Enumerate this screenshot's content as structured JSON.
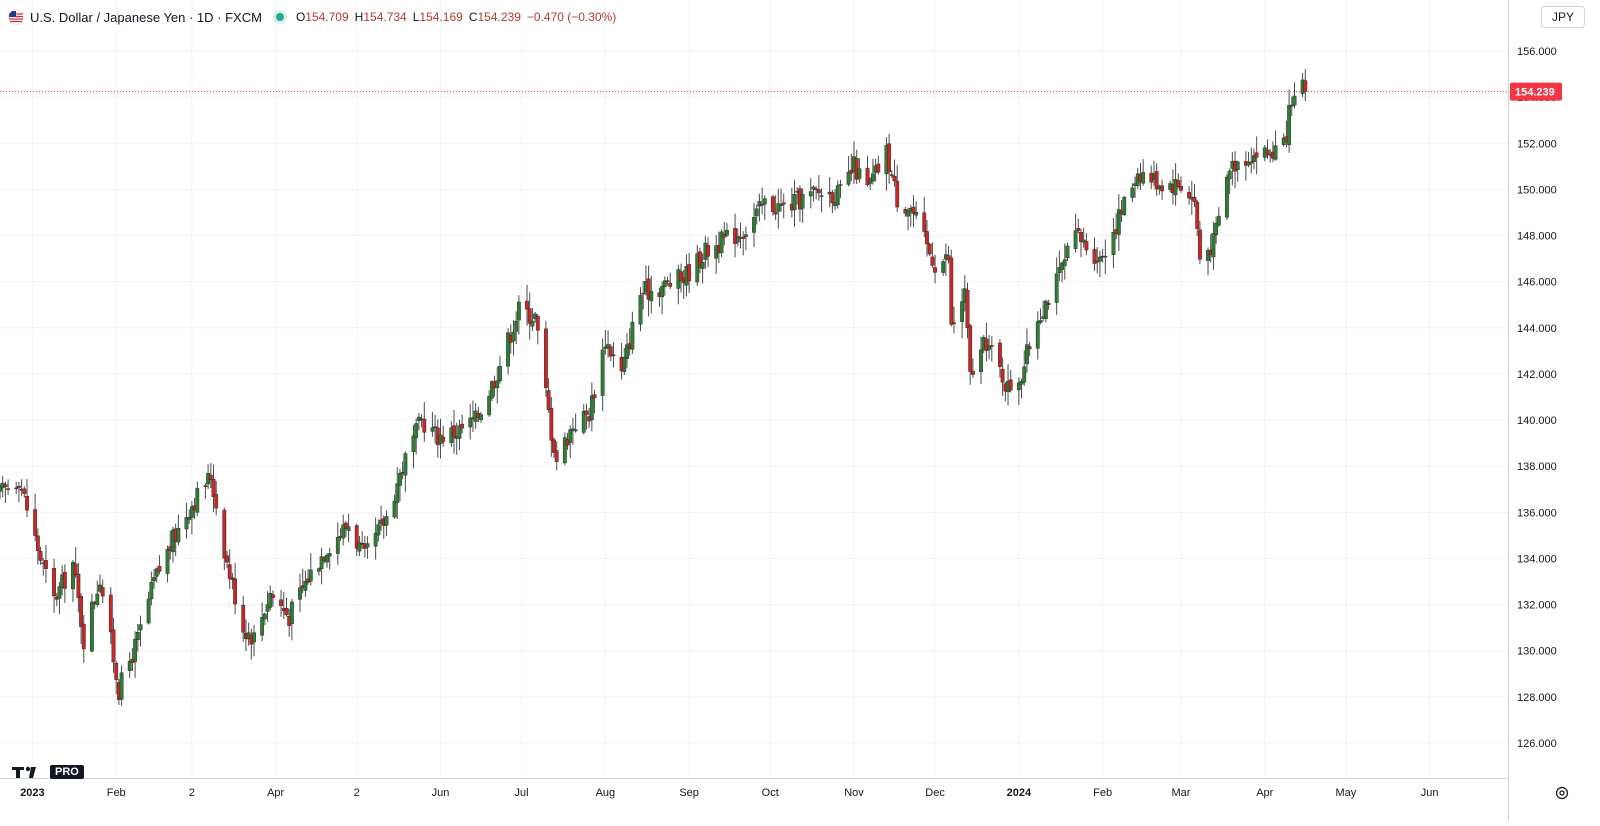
{
  "header": {
    "title": "U.S. Dollar / Japanese Yen · 1D · FXCM",
    "ohlc": [
      {
        "label": "O",
        "value": "154.709"
      },
      {
        "label": "H",
        "value": "154.734"
      },
      {
        "label": "L",
        "value": "154.169"
      },
      {
        "label": "C",
        "value": "154.239"
      },
      {
        "label": "",
        "value": "−0.470 (−0.30%)"
      }
    ],
    "flag_icon": "us-flag-icon",
    "status_color": "#22ab94"
  },
  "price_axis": {
    "currency": "JPY",
    "last_price_label": "154.239",
    "last_price_color": "#f23645"
  },
  "logo": {
    "text": "PRO"
  },
  "colors": {
    "up": "#2e7d32",
    "down": "#c62828",
    "wick": "#4a4a4a",
    "grid": "#f0f3fa"
  },
  "chart_data": {
    "type": "candlestick",
    "title": "U.S. Dollar / Japanese Yen · 1D · FXCM",
    "ylim": [
      124.5,
      157.5
    ],
    "y_ticks": [
      126,
      128,
      130,
      132,
      134,
      136,
      138,
      140,
      142,
      144,
      146,
      148,
      150,
      152,
      154,
      156
    ],
    "y_tick_labels": [
      "126.000",
      "128.000",
      "130.000",
      "132.000",
      "134.000",
      "136.000",
      "138.000",
      "140.000",
      "142.000",
      "144.000",
      "146.000",
      "148.000",
      "150.000",
      "152.000",
      "154.000",
      "156.000"
    ],
    "x_labels": [
      "2023",
      "Feb",
      "2",
      "Apr",
      "2",
      "Jun",
      "Jul",
      "Aug",
      "Sep",
      "Oct",
      "Nov",
      "Dec",
      "2024",
      "Feb",
      "Mar",
      "Apr",
      "May",
      "Jun"
    ],
    "x_range": [
      "2022-12-20",
      "2024-06-30"
    ],
    "x_label_dates": [
      "2023-01-01",
      "2023-02-01",
      "2023-03-01",
      "2023-04-01",
      "2023-05-01",
      "2023-06-01",
      "2023-07-01",
      "2023-08-01",
      "2023-09-01",
      "2023-10-01",
      "2023-11-01",
      "2023-12-01",
      "2024-01-01",
      "2024-02-01",
      "2024-03-01",
      "2024-04-01",
      "2024-05-01",
      "2024-06-01"
    ],
    "close_anchors": [
      [
        "2022-12-20",
        136.8
      ],
      [
        "2022-12-27",
        137.5
      ],
      [
        "2023-01-04",
        134.0
      ],
      [
        "2023-01-09",
        132.2
      ],
      [
        "2023-01-16",
        133.8
      ],
      [
        "2023-01-20",
        130.5
      ],
      [
        "2023-01-26",
        133.2
      ],
      [
        "2023-02-02",
        128.3
      ],
      [
        "2023-02-09",
        130.5
      ],
      [
        "2023-02-15",
        133.0
      ],
      [
        "2023-02-22",
        134.8
      ],
      [
        "2023-02-28",
        136.2
      ],
      [
        "2023-03-08",
        137.6
      ],
      [
        "2023-03-14",
        133.8
      ],
      [
        "2023-03-20",
        131.0
      ],
      [
        "2023-03-24",
        130.6
      ],
      [
        "2023-03-30",
        132.5
      ],
      [
        "2023-04-06",
        131.5
      ],
      [
        "2023-04-13",
        133.2
      ],
      [
        "2023-04-20",
        134.5
      ],
      [
        "2023-04-28",
        135.5
      ],
      [
        "2023-05-04",
        134.0
      ],
      [
        "2023-05-12",
        135.8
      ],
      [
        "2023-05-18",
        138.0
      ],
      [
        "2023-05-25",
        140.0
      ],
      [
        "2023-05-31",
        139.3
      ],
      [
        "2023-06-07",
        139.5
      ],
      [
        "2023-06-14",
        140.0
      ],
      [
        "2023-06-21",
        141.8
      ],
      [
        "2023-06-30",
        144.8
      ],
      [
        "2023-07-06",
        144.5
      ],
      [
        "2023-07-12",
        139.5
      ],
      [
        "2023-07-14",
        138.3
      ],
      [
        "2023-07-20",
        139.8
      ],
      [
        "2023-07-26",
        140.3
      ],
      [
        "2023-08-01",
        143.5
      ],
      [
        "2023-08-07",
        142.0
      ],
      [
        "2023-08-14",
        145.5
      ],
      [
        "2023-08-22",
        145.8
      ],
      [
        "2023-08-30",
        146.2
      ],
      [
        "2023-09-07",
        147.3
      ],
      [
        "2023-09-14",
        147.8
      ],
      [
        "2023-09-22",
        148.3
      ],
      [
        "2023-09-29",
        149.4
      ],
      [
        "2023-10-06",
        149.2
      ],
      [
        "2023-10-13",
        149.6
      ],
      [
        "2023-10-20",
        149.9
      ],
      [
        "2023-10-27",
        149.8
      ],
      [
        "2023-11-01",
        151.0
      ],
      [
        "2023-11-06",
        150.0
      ],
      [
        "2023-11-13",
        151.6
      ],
      [
        "2023-11-17",
        149.6
      ],
      [
        "2023-11-22",
        149.2
      ],
      [
        "2023-11-28",
        147.5
      ],
      [
        "2023-12-01",
        146.8
      ],
      [
        "2023-12-06",
        147.0
      ],
      [
        "2023-12-07",
        144.0
      ],
      [
        "2023-12-12",
        145.5
      ],
      [
        "2023-12-14",
        141.9
      ],
      [
        "2023-12-20",
        143.4
      ],
      [
        "2023-12-28",
        141.4
      ],
      [
        "2024-01-02",
        142.0
      ],
      [
        "2024-01-08",
        144.5
      ],
      [
        "2024-01-15",
        146.0
      ],
      [
        "2024-01-22",
        148.0
      ],
      [
        "2024-01-31",
        147.0
      ],
      [
        "2024-02-06",
        148.5
      ],
      [
        "2024-02-14",
        150.8
      ],
      [
        "2024-02-22",
        150.3
      ],
      [
        "2024-03-01",
        150.2
      ],
      [
        "2024-03-06",
        149.5
      ],
      [
        "2024-03-08",
        147.0
      ],
      [
        "2024-03-13",
        147.7
      ],
      [
        "2024-03-19",
        151.0
      ],
      [
        "2024-03-26",
        151.5
      ],
      [
        "2024-04-03",
        151.6
      ],
      [
        "2024-04-08",
        151.8
      ],
      [
        "2024-04-10",
        153.2
      ],
      [
        "2024-04-15",
        154.4
      ],
      [
        "2024-04-16",
        154.239
      ]
    ]
  }
}
